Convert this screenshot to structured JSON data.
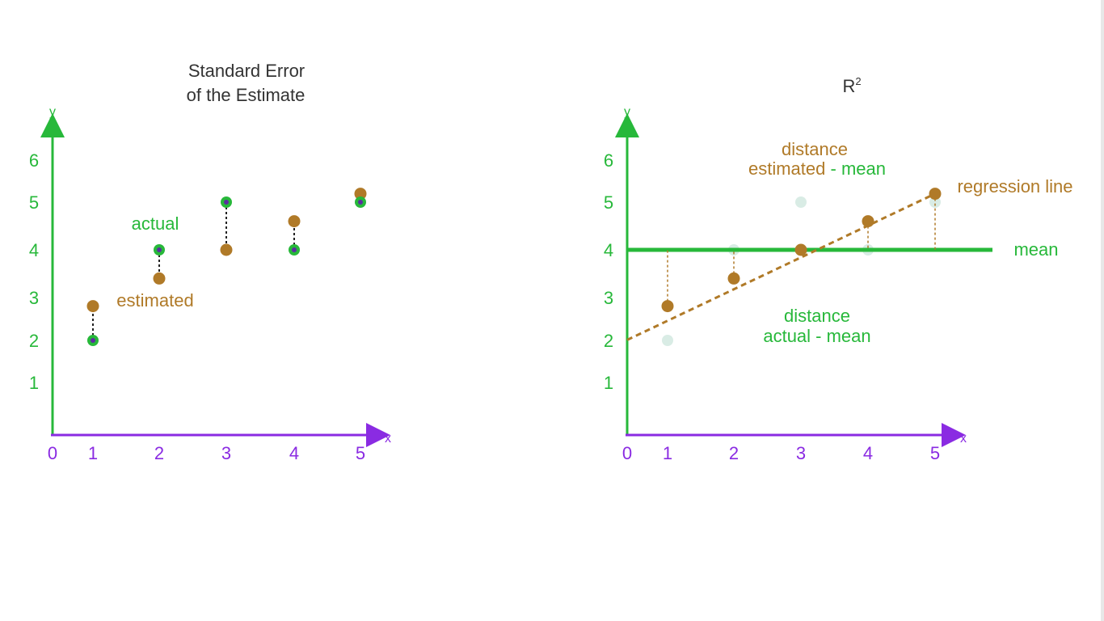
{
  "colors": {
    "green": "#27b83a",
    "purple": "#8a2be2",
    "brown": "#b07a28",
    "dark_text": "#333333",
    "inner_dot": "#5b2ea0",
    "faded": "#cfe7de"
  },
  "chart_data": [
    {
      "type": "scatter",
      "title_lines": [
        "Standard Error",
        "of the Estimate"
      ],
      "xlabel": "x",
      "ylabel": "y",
      "x_ticks": [
        "0",
        "1",
        "2",
        "3",
        "4",
        "5"
      ],
      "y_ticks": [
        "1",
        "2",
        "3",
        "4",
        "5",
        "6"
      ],
      "xlim": [
        0,
        5
      ],
      "ylim": [
        0,
        6.5
      ],
      "series": [
        {
          "name": "actual",
          "x": [
            1,
            2,
            3,
            4,
            5
          ],
          "y": [
            2,
            4,
            5,
            4,
            5
          ]
        },
        {
          "name": "estimated",
          "x": [
            1,
            2,
            3,
            4,
            5
          ],
          "y": [
            2.8,
            3.4,
            4.0,
            4.6,
            5.2
          ]
        }
      ],
      "annotations": [
        "actual",
        "estimated"
      ]
    },
    {
      "type": "scatter",
      "title": "R",
      "title_superscript": "2",
      "xlabel": "x",
      "ylabel": "y",
      "x_ticks": [
        "0",
        "1",
        "2",
        "3",
        "4",
        "5"
      ],
      "y_ticks": [
        "1",
        "2",
        "3",
        "4",
        "5",
        "6"
      ],
      "xlim": [
        0,
        5
      ],
      "ylim": [
        0,
        6.5
      ],
      "mean": 4,
      "mean_label": "mean",
      "regression_line_label": "regression line",
      "regression_line": {
        "intercept": 2.2,
        "slope": 0.6
      },
      "series": [
        {
          "name": "estimated",
          "x": [
            1,
            2,
            3,
            4,
            5
          ],
          "y": [
            2.8,
            3.4,
            4.0,
            4.6,
            5.2
          ]
        },
        {
          "name": "actual",
          "x": [
            1,
            2,
            3,
            4,
            5
          ],
          "y": [
            2,
            4,
            5,
            4,
            5
          ]
        }
      ],
      "annotations": [
        [
          "distance",
          "estimated - mean"
        ],
        [
          "distance",
          "actual - mean"
        ]
      ]
    }
  ]
}
